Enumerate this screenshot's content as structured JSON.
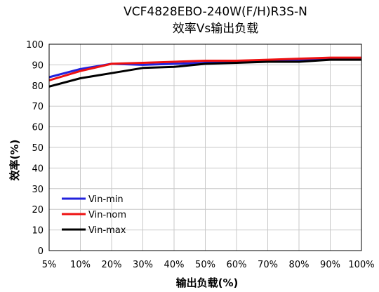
{
  "chart_data": {
    "type": "line",
    "title": "VCF4828EBO-240W(F/H)R3S-N",
    "subtitle": "效率Vs输出负载",
    "xlabel": "输出负载(%)",
    "ylabel": "效率(%)",
    "categories": [
      "5%",
      "10%",
      "20%",
      "30%",
      "40%",
      "50%",
      "60%",
      "70%",
      "80%",
      "90%",
      "100%"
    ],
    "ylim": [
      0,
      100
    ],
    "yticks": [
      0,
      10,
      20,
      30,
      40,
      50,
      60,
      70,
      80,
      90,
      100
    ],
    "grid": true,
    "legend_position": "bottom-left",
    "series": [
      {
        "name": "Vin-min",
        "color": "#2222dd",
        "values": [
          84,
          88,
          90.5,
          90,
          90.5,
          91,
          91.5,
          92,
          92.5,
          93,
          93
        ]
      },
      {
        "name": "Vin-nom",
        "color": "#ee1111",
        "values": [
          82.5,
          87,
          90.5,
          91,
          91.5,
          92,
          92,
          92.5,
          93,
          93.5,
          93.5
        ]
      },
      {
        "name": "Vin-max",
        "color": "#000000",
        "values": [
          79.5,
          83.5,
          86,
          88.5,
          89,
          90.5,
          91,
          91.5,
          91.5,
          92.5,
          92.5
        ]
      }
    ]
  }
}
